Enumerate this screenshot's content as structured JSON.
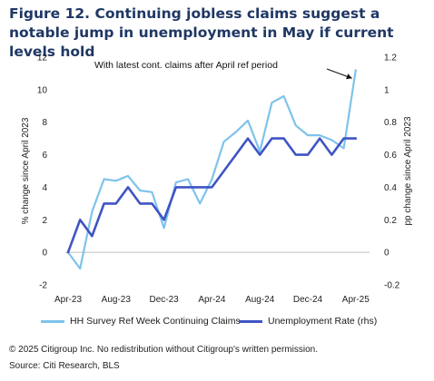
{
  "title": "Figure 12. Continuing jobless claims suggest a notable jump in unemployment in May if current levels hold",
  "footer": {
    "copyright": "© 2025 Citigroup Inc. No redistribution without Citigroup's written permission.",
    "source": "Source: Citi Research, BLS"
  },
  "colors": {
    "claims": "#7ec3ec",
    "unemployment": "#3f54c4",
    "title": "#1f3764"
  },
  "chart_data": {
    "type": "line",
    "x_ticks": [
      "Apr-23",
      "Aug-23",
      "Dec-23",
      "Apr-24",
      "Aug-24",
      "Dec-24",
      "Apr-25"
    ],
    "x": [
      "Apr-23",
      "May-23",
      "Jun-23",
      "Jul-23",
      "Aug-23",
      "Sep-23",
      "Oct-23",
      "Nov-23",
      "Dec-23",
      "Jan-24",
      "Feb-24",
      "Mar-24",
      "Apr-24",
      "May-24",
      "Jun-24",
      "Jul-24",
      "Aug-24",
      "Sep-24",
      "Oct-24",
      "Nov-24",
      "Dec-24",
      "Jan-25",
      "Feb-25",
      "Mar-25",
      "Apr-25",
      "May-25"
    ],
    "left_axis": {
      "label": "% change since April 2023",
      "ylim": [
        -2,
        12
      ],
      "ticks": [
        -2,
        0,
        2,
        4,
        6,
        8,
        10,
        12
      ]
    },
    "right_axis": {
      "label": "pp change since April 2023",
      "ylim": [
        -0.2,
        1.2
      ],
      "ticks": [
        "-0.2",
        "0",
        "0.2",
        "0.4",
        "0.6",
        "0.8",
        "1",
        "1.2"
      ]
    },
    "series": [
      {
        "name": "HH Survey Ref Week Continuing Claims",
        "axis": "left",
        "values": [
          0,
          -1,
          2.5,
          4.5,
          4.4,
          4.7,
          3.8,
          3.7,
          1.5,
          4.3,
          4.5,
          3.0,
          4.5,
          6.8,
          7.4,
          8.1,
          6.2,
          9.2,
          9.6,
          7.8,
          7.2,
          7.2,
          6.9,
          6.4,
          11.2,
          null
        ]
      },
      {
        "name": "Unemployment Rate (rhs)",
        "axis": "right",
        "values": [
          0,
          0.2,
          0.1,
          0.3,
          0.3,
          0.4,
          0.3,
          0.3,
          0.2,
          0.4,
          0.4,
          0.4,
          0.4,
          0.5,
          0.6,
          0.7,
          0.6,
          0.7,
          0.7,
          0.6,
          0.6,
          0.7,
          0.6,
          0.7,
          0.7,
          null
        ]
      }
    ],
    "annotation": "With latest cont. claims after April ref period",
    "legend_position": "bottom"
  }
}
